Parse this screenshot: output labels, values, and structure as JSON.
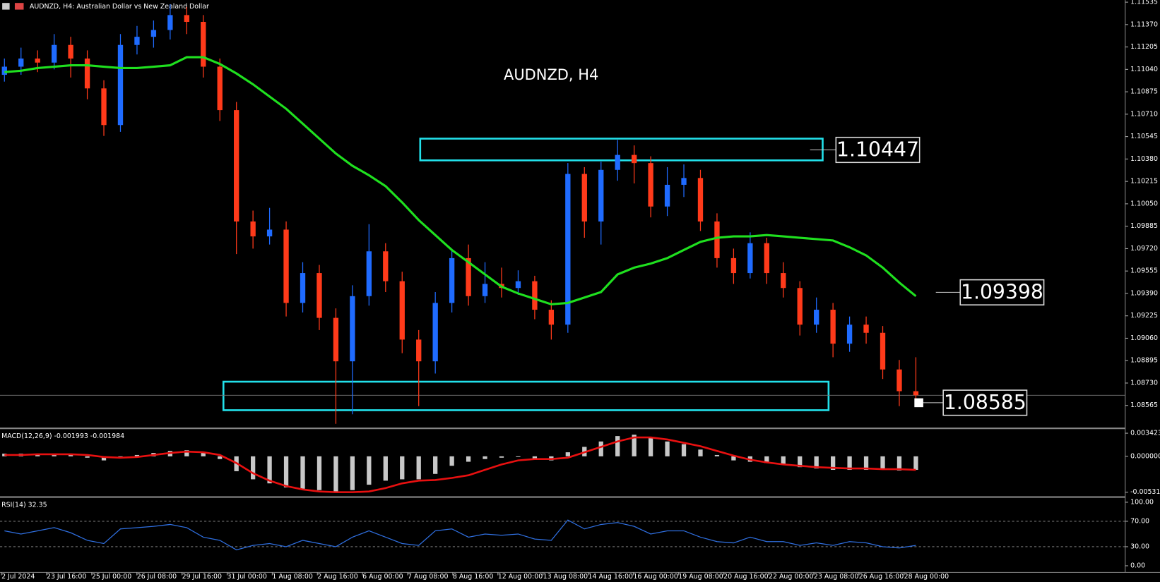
{
  "chart_data": [
    {
      "type": "candlestick",
      "title": "AUDNZD, H4",
      "header": "AUDNZD, H4:  Australian Dollar vs New Zealand Dollar",
      "ylim": [
        1.08407,
        1.11551
      ],
      "yticks": [
        1.11535,
        {
          "value": 1.1137,
          "label": "1.11370"
        },
        1.11205,
        {
          "value": 1.1104,
          "label": "1.11040"
        },
        1.10875,
        {
          "value": 1.1071,
          "label": "1.10710"
        },
        1.10545,
        {
          "value": 1.1038,
          "label": "1.10380"
        },
        1.10215,
        {
          "value": 1.1005,
          "label": "1.10050"
        },
        1.09885,
        {
          "value": 1.0972,
          "label": "1.09720"
        },
        1.09555,
        {
          "value": 1.0939,
          "label": "1.09390"
        },
        1.09225,
        {
          "value": 1.0906,
          "label": "1.09060"
        },
        1.08895,
        {
          "value": 1.0873,
          "label": "1.08730"
        },
        1.08565
      ],
      "x_axis_labels": [
        "2 Jul 2024",
        "23 Jul 16:00",
        "25 Jul 00:00",
        "26 Jul 08:00",
        "29 Jul 16:00",
        "31 Jul 00:00",
        "1 Aug 08:00",
        "2 Aug 16:00",
        "6 Aug 00:00",
        "7 Aug 08:00",
        "8 Aug 16:00",
        "12 Aug 00:00",
        "13 Aug 08:00",
        "14 Aug 16:00",
        "16 Aug 00:00",
        "19 Aug 08:00",
        "20 Aug 16:00",
        "22 Aug 00:00",
        "23 Aug 08:00",
        "26 Aug 16:00",
        "28 Aug 00:00"
      ],
      "up_color": "#1f6bff",
      "down_color": "#ff3a1a",
      "ma_color": "#1fe01f",
      "zone_color": "#22e0ea",
      "ohlc": [
        [
          1.11,
          1.1112,
          1.1095,
          1.1106
        ],
        [
          1.1106,
          1.112,
          1.11,
          1.1112
        ],
        [
          1.1112,
          1.1118,
          1.1102,
          1.1109
        ],
        [
          1.1109,
          1.113,
          1.1104,
          1.1122
        ],
        [
          1.1122,
          1.1128,
          1.1098,
          1.1112
        ],
        [
          1.1112,
          1.1118,
          1.1082,
          1.109
        ],
        [
          1.109,
          1.1096,
          1.1055,
          1.1063
        ],
        [
          1.1063,
          1.113,
          1.1058,
          1.1122
        ],
        [
          1.1122,
          1.1136,
          1.1115,
          1.1128
        ],
        [
          1.1128,
          1.114,
          1.112,
          1.1133
        ],
        [
          1.1133,
          1.1152,
          1.1126,
          1.1144
        ],
        [
          1.1144,
          1.115,
          1.113,
          1.1139
        ],
        [
          1.1139,
          1.1144,
          1.1098,
          1.1106
        ],
        [
          1.1106,
          1.1112,
          1.1066,
          1.1074
        ],
        [
          1.1074,
          1.108,
          1.0968,
          1.0992
        ],
        [
          1.0992,
          1.1,
          1.0972,
          1.0981
        ],
        [
          1.0981,
          1.1002,
          1.0975,
          1.0986
        ],
        [
          1.0986,
          1.0992,
          1.0922,
          1.0932
        ],
        [
          1.0932,
          1.0962,
          1.0925,
          1.0954
        ],
        [
          1.0954,
          1.096,
          1.0912,
          1.0921
        ],
        [
          1.0921,
          1.0928,
          1.0843,
          1.0889
        ],
        [
          1.0889,
          1.0945,
          1.085,
          1.0937
        ],
        [
          1.0937,
          1.099,
          1.093,
          1.097
        ],
        [
          1.097,
          1.0976,
          1.094,
          1.0948
        ],
        [
          1.0948,
          1.0955,
          1.0895,
          1.0905
        ],
        [
          1.0905,
          1.0912,
          1.0856,
          1.0889
        ],
        [
          1.0889,
          1.094,
          1.088,
          1.0932
        ],
        [
          1.0932,
          1.0972,
          1.0925,
          1.0965
        ],
        [
          1.0965,
          1.0975,
          1.093,
          1.0937
        ],
        [
          1.0937,
          1.0962,
          1.0932,
          1.0946
        ],
        [
          1.0946,
          1.0958,
          1.0936,
          1.0943
        ],
        [
          1.0943,
          1.0956,
          1.0938,
          1.0948
        ],
        [
          1.0948,
          1.0952,
          1.092,
          1.0927
        ],
        [
          1.0927,
          1.0934,
          1.0905,
          1.0916
        ],
        [
          1.0916,
          1.1035,
          1.091,
          1.1027
        ],
        [
          1.1027,
          1.1032,
          1.098,
          1.0992
        ],
        [
          1.0992,
          1.1036,
          1.0975,
          1.103
        ],
        [
          1.103,
          1.1052,
          1.1022,
          1.1041
        ],
        [
          1.1041,
          1.1048,
          1.102,
          1.1035
        ],
        [
          1.1035,
          1.104,
          1.0995,
          1.1003
        ],
        [
          1.1003,
          1.1032,
          1.0996,
          1.1019
        ],
        [
          1.1019,
          1.1034,
          1.101,
          1.1024
        ],
        [
          1.1024,
          1.103,
          1.0985,
          1.0992
        ],
        [
          1.0992,
          1.0998,
          1.0958,
          1.0965
        ],
        [
          1.0965,
          1.0972,
          1.0946,
          1.0954
        ],
        [
          1.0954,
          1.0984,
          1.095,
          1.0976
        ],
        [
          1.0976,
          1.098,
          1.0946,
          1.0954
        ],
        [
          1.0954,
          1.0962,
          1.0936,
          1.0943
        ],
        [
          1.0943,
          1.0948,
          1.0908,
          1.0916
        ],
        [
          1.0916,
          1.0936,
          1.091,
          1.0927
        ],
        [
          1.0927,
          1.0932,
          1.0892,
          1.0902
        ],
        [
          1.0902,
          1.0922,
          1.0896,
          1.0916
        ],
        [
          1.0916,
          1.0922,
          1.0902,
          1.091
        ],
        [
          1.091,
          1.0915,
          1.0876,
          1.0883
        ],
        [
          1.0883,
          1.089,
          1.0856,
          1.0867
        ],
        [
          1.0867,
          1.0892,
          1.086,
          1.0864
        ]
      ],
      "ma": [
        1.1102,
        1.1103,
        1.1105,
        1.1106,
        1.1107,
        1.1107,
        1.1106,
        1.1105,
        1.1105,
        1.1106,
        1.1107,
        1.1113,
        1.1113,
        1.1108,
        1.1101,
        1.1093,
        1.1084,
        1.1075,
        1.1064,
        1.1053,
        1.1042,
        1.1033,
        1.1026,
        1.1018,
        1.1006,
        1.0993,
        1.0982,
        1.0971,
        1.0962,
        1.0953,
        1.0944,
        1.0939,
        1.0935,
        1.0931,
        1.0932,
        1.0936,
        1.094,
        1.0953,
        1.0958,
        1.0961,
        1.0965,
        1.0971,
        1.0977,
        1.098,
        1.0981,
        1.0981,
        1.0982,
        1.0981,
        1.098,
        1.0979,
        1.0978,
        1.0973,
        1.0967,
        1.0958,
        1.0947,
        1.0937
      ],
      "zones": [
        {
          "high": 1.1053,
          "low": 1.1037
        },
        {
          "high": 1.0874,
          "low": 1.0853
        }
      ],
      "price_labels": [
        1.10447,
        1.09398,
        1.08585
      ]
    },
    {
      "type": "macd",
      "title": "MACD(12,26,9) -0.001993 -0.001984",
      "ylim": [
        -0.0057,
        0.0037
      ],
      "yticks": [
        0.003423,
        {
          "value": 0,
          "label": "0.000000"
        },
        -0.005314
      ],
      "hist_color": "#c8c8c8",
      "signal_color": "#e81010",
      "histogram": [
        0.0004,
        0.0004,
        0.0003,
        0.0003,
        0.0002,
        -0.0002,
        -0.0006,
        -0.0003,
        0.0002,
        0.0005,
        0.0008,
        0.0009,
        0.0006,
        -0.0004,
        -0.0022,
        -0.0034,
        -0.004,
        -0.0046,
        -0.0048,
        -0.005,
        -0.0054,
        -0.005,
        -0.0042,
        -0.0036,
        -0.0034,
        -0.0034,
        -0.0026,
        -0.0014,
        -0.0008,
        -0.0004,
        -0.0002,
        -0.0001,
        -0.0004,
        -0.0006,
        0.0006,
        0.0014,
        0.0022,
        0.003,
        0.0032,
        0.0028,
        0.0022,
        0.0018,
        0.001,
        0.0002,
        -0.0006,
        -0.0008,
        -0.001,
        -0.0012,
        -0.0016,
        -0.0018,
        -0.002,
        -0.002,
        -0.002,
        -0.002,
        -0.0021,
        -0.002
      ],
      "signal": [
        0.0002,
        0.0002,
        0.0003,
        0.0003,
        0.0003,
        0.0002,
        -0.0001,
        -0.0002,
        -0.0001,
        0.0002,
        0.0005,
        0.0007,
        0.0006,
        0.0002,
        -0.001,
        -0.0025,
        -0.0036,
        -0.0044,
        -0.0049,
        -0.0052,
        -0.0053,
        -0.0053,
        -0.0052,
        -0.0047,
        -0.004,
        -0.0036,
        -0.0035,
        -0.0032,
        -0.0028,
        -0.002,
        -0.0012,
        -0.0006,
        -0.0004,
        -0.0004,
        -0.0002,
        0.0006,
        0.0014,
        0.0022,
        0.0028,
        0.0028,
        0.0025,
        0.002,
        0.0015,
        0.0008,
        0.0001,
        -0.0005,
        -0.0009,
        -0.0012,
        -0.0014,
        -0.0016,
        -0.0017,
        -0.0018,
        -0.0018,
        -0.0019,
        -0.0019,
        -0.002
      ]
    },
    {
      "type": "rsi",
      "title": "RSI(14) 32.35",
      "ylim": [
        0,
        100
      ],
      "yticks": [
        {
          "value": 100,
          "label": "100.00"
        },
        {
          "value": 70,
          "label": "70.00"
        },
        {
          "value": 30,
          "label": "30.00"
        },
        {
          "value": 0,
          "label": "0.00"
        }
      ],
      "levels": [
        70,
        30
      ],
      "color": "#2f6fe0",
      "values": [
        55,
        50,
        55,
        60,
        52,
        40,
        35,
        58,
        60,
        62,
        65,
        60,
        45,
        40,
        25,
        32,
        35,
        30,
        40,
        35,
        30,
        45,
        55,
        45,
        35,
        32,
        55,
        58,
        45,
        50,
        48,
        50,
        42,
        40,
        72,
        58,
        65,
        68,
        62,
        50,
        55,
        55,
        45,
        38,
        36,
        45,
        38,
        38,
        32,
        36,
        32,
        38,
        36,
        30,
        28,
        32
      ]
    }
  ]
}
